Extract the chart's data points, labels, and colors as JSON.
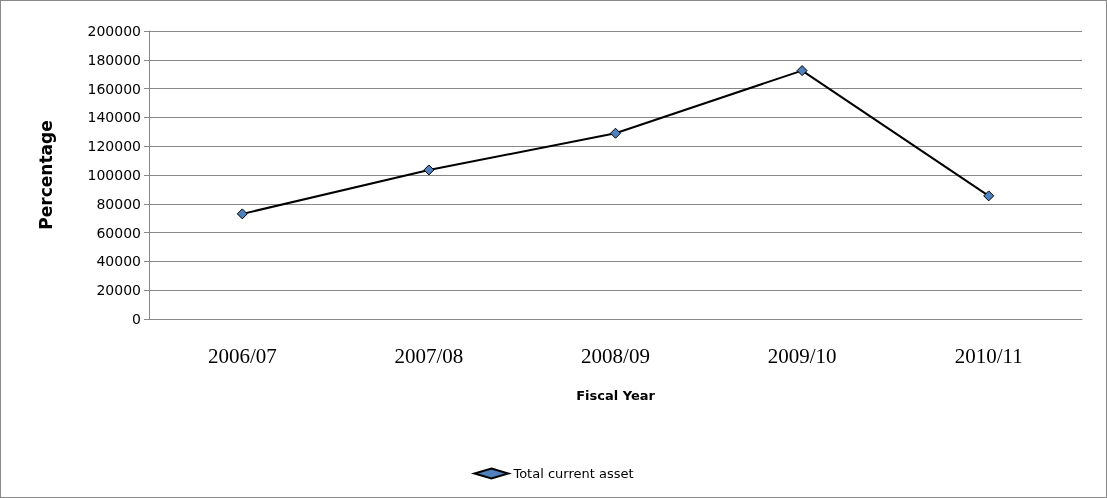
{
  "chart_data": {
    "type": "line",
    "xlabel": "Fiscal Year",
    "ylabel": "Percentage",
    "categories": [
      "2006/07",
      "2007/08",
      "2008/09",
      "2009/10",
      "2010/11"
    ],
    "series": [
      {
        "name": "Total current asset",
        "color": "#000000",
        "values": [
          73000,
          103500,
          129000,
          172500,
          85500
        ]
      }
    ],
    "ylim": [
      0,
      200000
    ],
    "yticks": [
      0,
      20000,
      40000,
      60000,
      80000,
      100000,
      120000,
      140000,
      160000,
      180000,
      200000
    ],
    "grid": "y",
    "legend": "bottom",
    "marker": "diamond"
  }
}
